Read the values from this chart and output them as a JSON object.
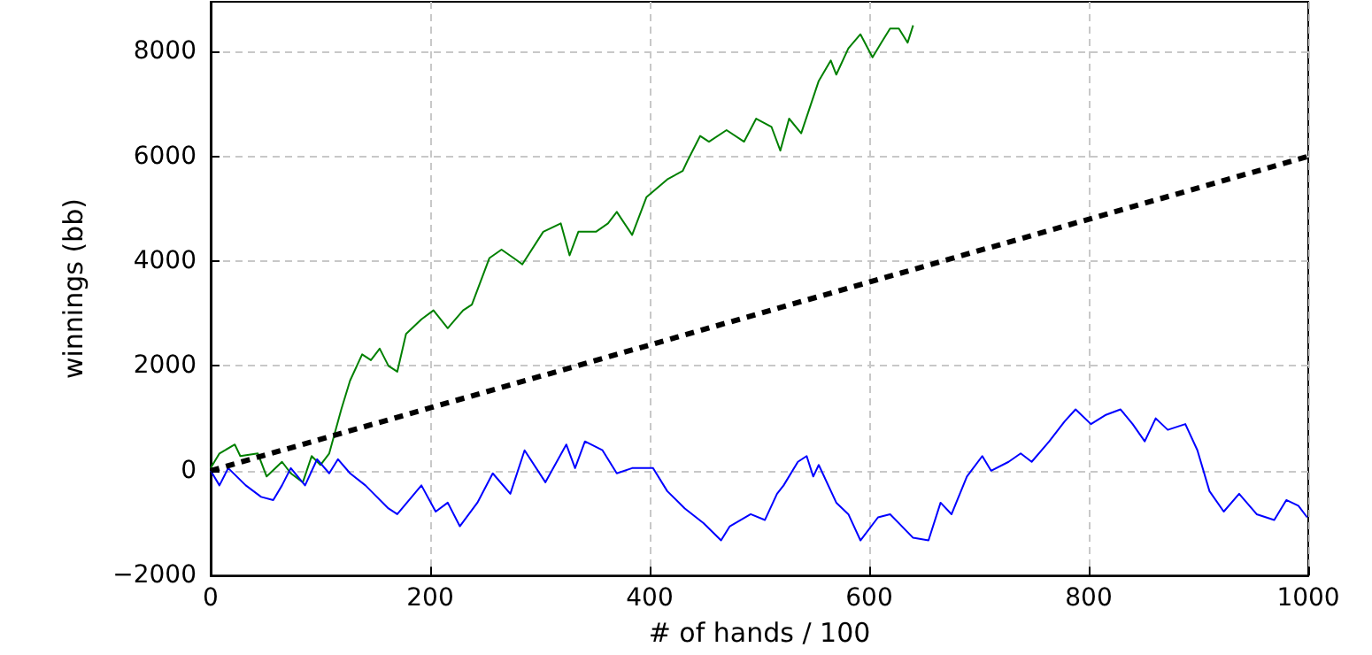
{
  "chart_data": {
    "type": "line",
    "xlabel": "# of hands / 100",
    "ylabel": "winnings (bb)",
    "xlim": [
      0,
      1000
    ],
    "ylim": [
      -2000,
      8950
    ],
    "xticks": [
      0,
      200,
      400,
      600,
      800,
      1000
    ],
    "yticks": [
      -2000,
      0,
      2000,
      4000,
      6000,
      8000
    ],
    "grid": true,
    "marker": "none",
    "series": [
      {
        "color": "#008000",
        "line_style": "solid",
        "x": [
          0,
          8,
          22,
          27,
          43,
          51,
          65,
          73,
          84,
          92,
          100,
          108,
          119,
          127,
          138,
          146,
          154,
          162,
          170,
          178,
          192,
          203,
          216,
          230,
          238,
          254,
          265,
          276,
          284,
          303,
          319,
          327,
          335,
          351,
          362,
          370,
          384,
          397,
          416,
          430,
          435,
          446,
          454,
          470,
          486,
          497,
          511,
          519,
          527,
          538,
          554,
          565,
          570,
          581,
          592,
          603,
          611,
          619,
          627,
          635,
          640
        ],
        "values": [
          50,
          330,
          500,
          280,
          330,
          -110,
          170,
          -50,
          -220,
          280,
          110,
          330,
          1170,
          1720,
          2220,
          2110,
          2330,
          2000,
          1890,
          2610,
          2890,
          3060,
          2720,
          3060,
          3170,
          4060,
          4220,
          4060,
          3940,
          4560,
          4720,
          4110,
          4560,
          4560,
          4720,
          4940,
          4500,
          5220,
          5560,
          5720,
          5940,
          6390,
          6280,
          6500,
          6280,
          6720,
          6560,
          6110,
          6720,
          6440,
          7440,
          7830,
          7560,
          8060,
          8330,
          7890,
          8170,
          8440,
          8440,
          8170,
          8500
        ]
      },
      {
        "color": "#0000ff",
        "line_style": "solid",
        "x": [
          0,
          8,
          16,
          32,
          46,
          57,
          65,
          73,
          86,
          97,
          108,
          116,
          127,
          141,
          162,
          170,
          192,
          205,
          216,
          227,
          243,
          257,
          273,
          286,
          305,
          324,
          332,
          341,
          357,
          370,
          384,
          403,
          416,
          432,
          449,
          465,
          473,
          492,
          505,
          516,
          522,
          535,
          543,
          549,
          554,
          570,
          581,
          592,
          608,
          619,
          640,
          654,
          665,
          675,
          689,
          703,
          711,
          727,
          738,
          748,
          764,
          778,
          788,
          802,
          815,
          829,
          840,
          851,
          861,
          872,
          888,
          899,
          910,
          923,
          937,
          953,
          969,
          980,
          991,
          999
        ],
        "values": [
          0,
          -280,
          50,
          -280,
          -500,
          -560,
          -280,
          50,
          -280,
          220,
          -50,
          220,
          -50,
          -280,
          -720,
          -830,
          -280,
          -780,
          -610,
          -1060,
          -610,
          -50,
          -440,
          390,
          -220,
          500,
          50,
          560,
          390,
          -50,
          50,
          50,
          -390,
          -720,
          -1000,
          -1330,
          -1060,
          -830,
          -940,
          -440,
          -280,
          170,
          280,
          -110,
          110,
          -610,
          -830,
          -1330,
          -890,
          -830,
          -1280,
          -1330,
          -610,
          -830,
          -110,
          280,
          0,
          170,
          330,
          170,
          560,
          940,
          1170,
          890,
          1060,
          1170,
          890,
          560,
          1000,
          780,
          890,
          390,
          -390,
          -780,
          -440,
          -830,
          -940,
          -560,
          -670,
          -890
        ]
      },
      {
        "color": "#000000",
        "line_style": "dashed",
        "x": [
          0,
          1000
        ],
        "values": [
          0,
          6000
        ]
      }
    ]
  }
}
